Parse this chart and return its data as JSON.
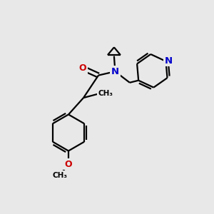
{
  "bg_color": "#e8e8e8",
  "bond_color": "#000000",
  "N_color": "#0000cc",
  "O_color": "#cc0000",
  "line_width": 1.6,
  "fig_size": [
    3.0,
    3.0
  ],
  "dpi": 100,
  "xlim": [
    0,
    10
  ],
  "ylim": [
    0,
    10
  ]
}
